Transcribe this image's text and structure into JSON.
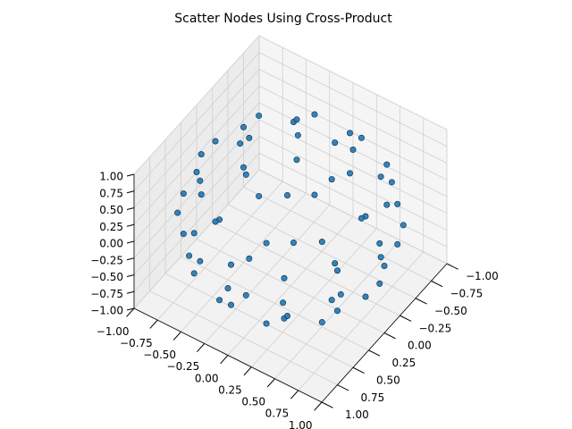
{
  "chart_data": {
    "type": "scatter3d",
    "title": "Scatter Nodes Using Cross-Product",
    "color": "#1f77b4",
    "grid": true,
    "xlim": [
      -1,
      1
    ],
    "ylim": [
      -1,
      1
    ],
    "zlim": [
      -1,
      1
    ],
    "xticks": [
      {
        "value": -1,
        "label": "−1.00"
      },
      {
        "value": -0.75,
        "label": "−0.75"
      },
      {
        "value": -0.5,
        "label": "−0.50"
      },
      {
        "value": -0.25,
        "label": "−0.25"
      },
      {
        "value": 0,
        "label": "0.00"
      },
      {
        "value": 0.25,
        "label": "0.25"
      },
      {
        "value": 0.5,
        "label": "0.50"
      },
      {
        "value": 0.75,
        "label": "0.75"
      },
      {
        "value": 1,
        "label": "1.00"
      }
    ],
    "yticks": [
      {
        "value": -1,
        "label": "−1.00"
      },
      {
        "value": -0.75,
        "label": "−0.75"
      },
      {
        "value": -0.5,
        "label": "−0.50"
      },
      {
        "value": -0.25,
        "label": "−0.25"
      },
      {
        "value": 0,
        "label": "0.00"
      },
      {
        "value": 0.25,
        "label": "0.25"
      },
      {
        "value": 0.5,
        "label": "0.50"
      },
      {
        "value": 0.75,
        "label": "0.75"
      },
      {
        "value": 1,
        "label": "1.00"
      }
    ],
    "zticks": [
      {
        "value": -1,
        "label": "−1.00"
      },
      {
        "value": -0.75,
        "label": "−0.75"
      },
      {
        "value": -0.5,
        "label": "−0.50"
      },
      {
        "value": -0.25,
        "label": "−0.25"
      },
      {
        "value": 0,
        "label": "0.00"
      },
      {
        "value": 0.25,
        "label": "0.25"
      },
      {
        "value": 0.5,
        "label": "0.50"
      },
      {
        "value": 0.75,
        "label": "0.75"
      },
      {
        "value": 1,
        "label": "1.00"
      }
    ],
    "x": [
      0.44,
      0.22,
      -0.22,
      -0.44,
      -0.22,
      0.22,
      0.8,
      0.65,
      0.25,
      -0.25,
      -0.65,
      -0.8,
      -0.65,
      -0.25,
      0.25,
      0.65,
      0.95,
      0.82,
      0.48,
      0,
      -0.48,
      -0.82,
      -0.95,
      -0.82,
      -0.48,
      0,
      0.48,
      0.82,
      1,
      0.87,
      0.5,
      0,
      -0.5,
      -0.87,
      -1,
      -0.87,
      -0.5,
      0,
      0.5,
      0.87,
      0.95,
      0.82,
      0.48,
      0,
      -0.48,
      -0.82,
      -0.95,
      -0.82,
      -0.48,
      0,
      0.48,
      0.82,
      0.8,
      0.65,
      0.25,
      -0.25,
      -0.65,
      -0.8,
      -0.65,
      -0.25,
      0.25,
      0.65,
      0.44,
      0.22,
      -0.22,
      -0.44,
      -0.22,
      0.22
    ],
    "y": [
      0,
      0.38,
      0.38,
      0,
      -0.38,
      -0.38,
      0,
      0.47,
      0.76,
      0.76,
      0.47,
      0,
      -0.47,
      -0.76,
      -0.76,
      -0.47,
      0,
      0.48,
      0.82,
      0.95,
      0.82,
      0.48,
      0,
      -0.48,
      -0.82,
      -0.95,
      -0.82,
      -0.48,
      0,
      0.5,
      0.87,
      1,
      0.87,
      0.5,
      0,
      -0.5,
      -0.87,
      -1,
      -0.87,
      -0.5,
      0,
      0.48,
      0.82,
      0.95,
      0.82,
      0.48,
      0,
      -0.48,
      -0.82,
      -0.95,
      -0.82,
      -0.48,
      0,
      0.47,
      0.76,
      0.76,
      0.47,
      0,
      -0.47,
      -0.76,
      -0.76,
      -0.47,
      0,
      0.38,
      0.38,
      0,
      -0.38,
      -0.38
    ],
    "z": [
      0.9,
      0.9,
      0.9,
      0.9,
      0.9,
      0.9,
      0.6,
      0.6,
      0.6,
      0.6,
      0.6,
      0.6,
      0.6,
      0.6,
      0.6,
      0.6,
      0.3,
      0.3,
      0.3,
      0.3,
      0.3,
      0.3,
      0.3,
      0.3,
      0.3,
      0.3,
      0.3,
      0.3,
      0,
      0,
      0,
      0,
      0,
      0,
      0,
      0,
      0,
      0,
      0,
      0,
      -0.3,
      -0.3,
      -0.3,
      -0.3,
      -0.3,
      -0.3,
      -0.3,
      -0.3,
      -0.3,
      -0.3,
      -0.3,
      -0.3,
      -0.6,
      -0.6,
      -0.6,
      -0.6,
      -0.6,
      -0.6,
      -0.6,
      -0.6,
      -0.6,
      -0.6,
      -0.9,
      -0.9,
      -0.9,
      -0.9,
      -0.9,
      -0.9
    ]
  }
}
